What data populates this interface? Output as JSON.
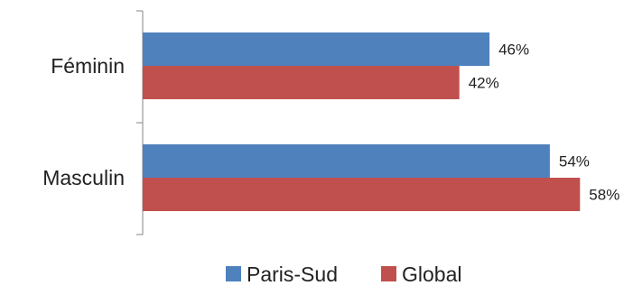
{
  "chart_data": {
    "type": "bar",
    "orientation": "horizontal",
    "categories": [
      "Féminin",
      "Masculin"
    ],
    "series": [
      {
        "name": "Paris-Sud",
        "values": [
          46,
          54
        ],
        "labels": [
          "46%",
          "54%"
        ],
        "color": "#4F81BD"
      },
      {
        "name": "Global",
        "values": [
          42,
          58
        ],
        "labels": [
          "42%",
          "58%"
        ],
        "color": "#C0504D"
      }
    ],
    "xlim": [
      0,
      58
    ],
    "grid": false,
    "legend_position": "bottom",
    "axis_color": "#868686"
  }
}
